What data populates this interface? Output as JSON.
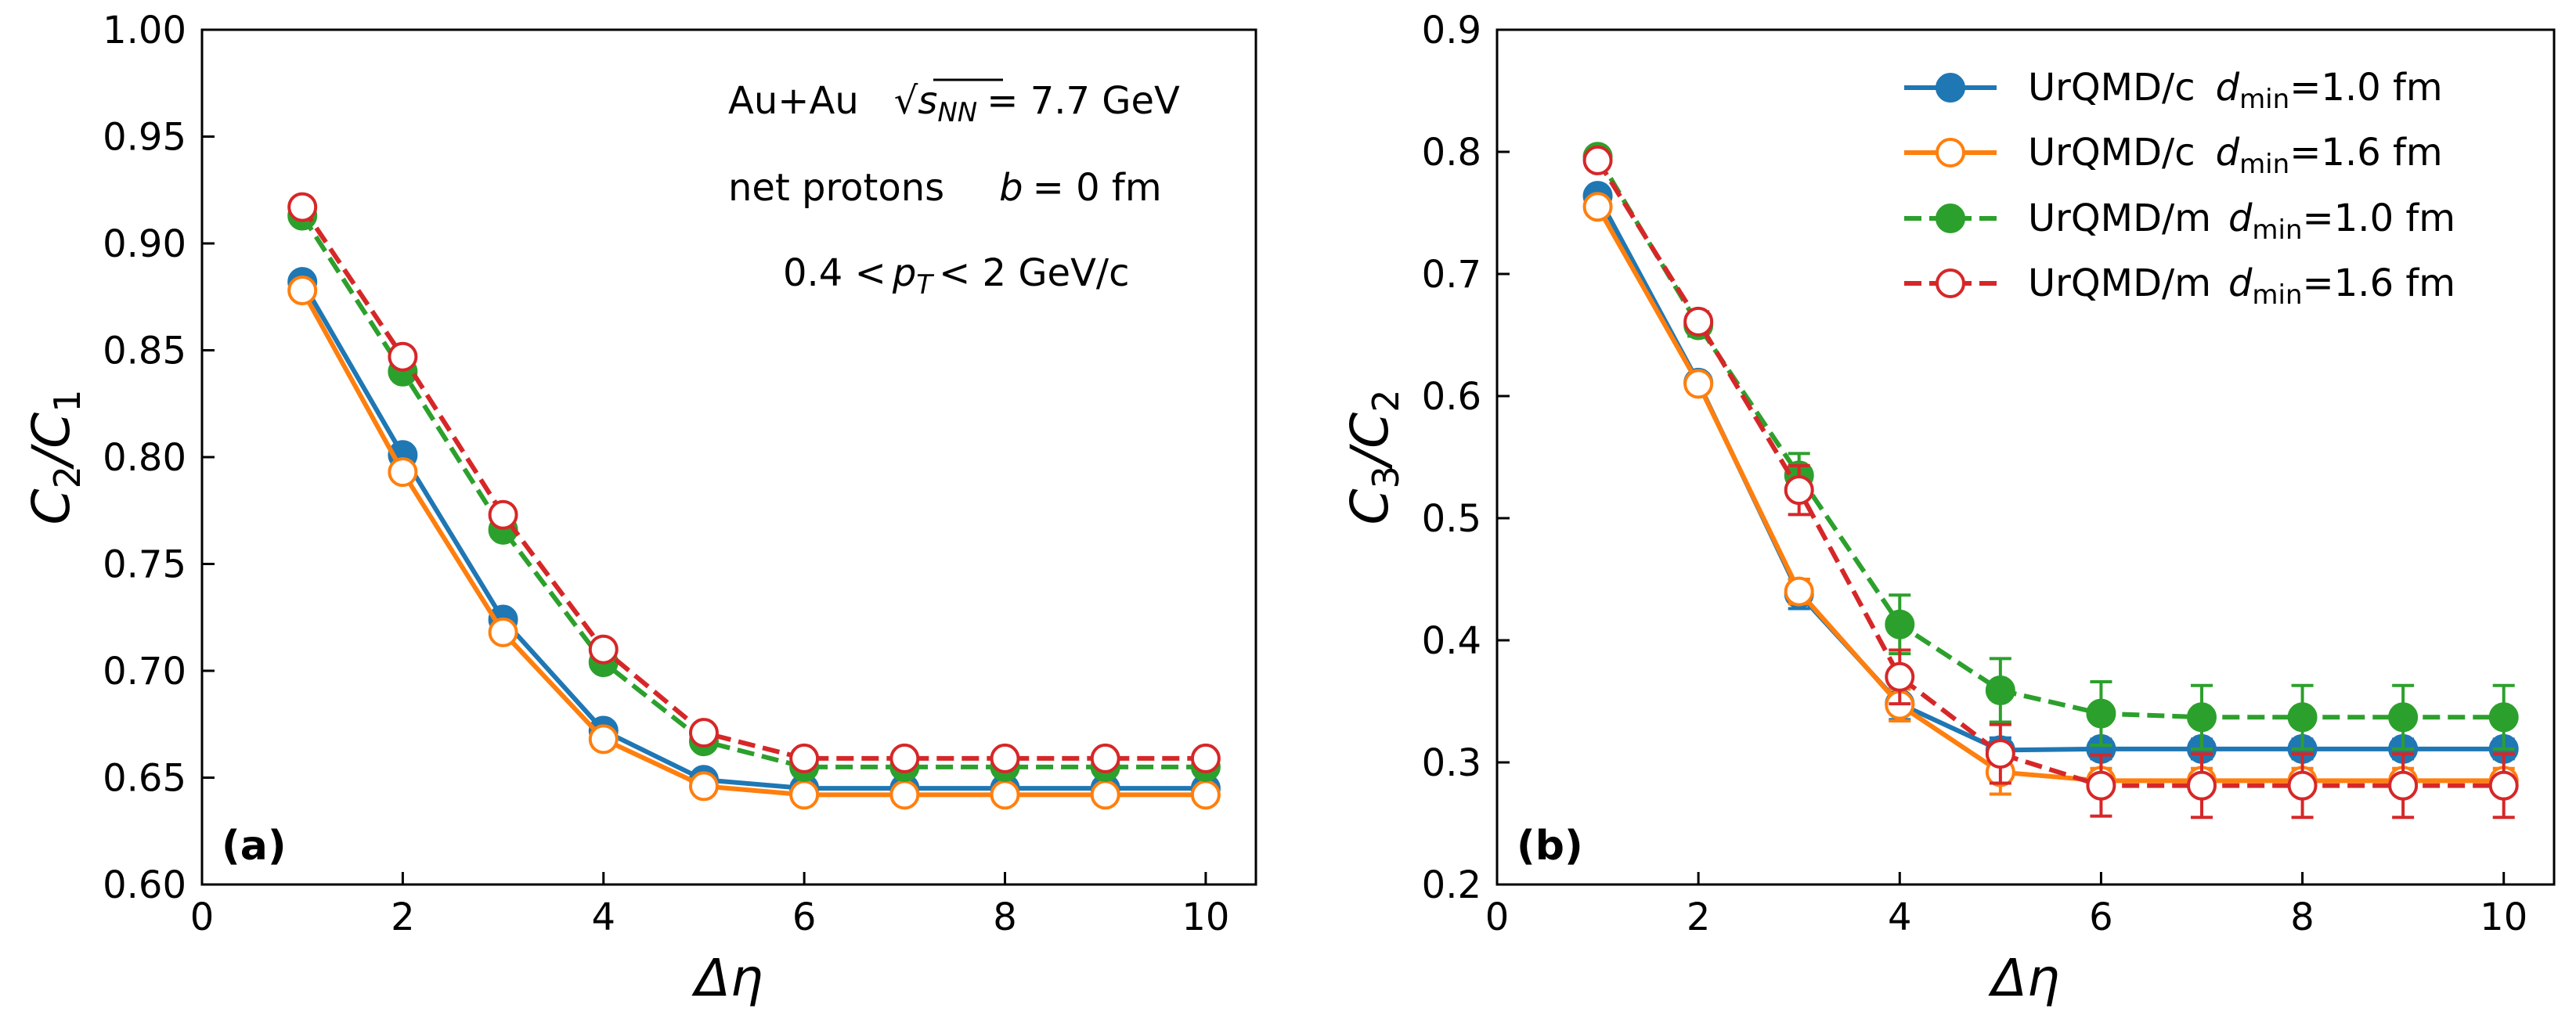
{
  "chart_data": [
    {
      "type": "line",
      "panel_label": "(a)",
      "xlabel": "Δη",
      "ylabel": {
        "base": "C",
        "sub1": "2",
        "sep": "/C",
        "sub2": "1"
      },
      "xlim": [
        0,
        10.5
      ],
      "ylim": [
        0.6,
        1.0
      ],
      "xticks": [
        0,
        2,
        4,
        6,
        8,
        10
      ],
      "xtick_labels": [
        "0",
        "2",
        "4",
        "6",
        "8",
        "10"
      ],
      "yticks": [
        0.6,
        0.65,
        0.7,
        0.75,
        0.8,
        0.85,
        0.9,
        0.95,
        1.0
      ],
      "ytick_labels": [
        "0.60",
        "0.65",
        "0.70",
        "0.75",
        "0.80",
        "0.85",
        "0.90",
        "0.95",
        "1.00"
      ],
      "annotations": {
        "line1_system": "Au+Au",
        "line1_sqrt_var": "s",
        "line1_sqrt_sub": "NN",
        "line1_energy": "= 7.7 GeV",
        "line2_particles": "net protons",
        "line2_b": "b",
        "line2_b_value": "= 0 fm",
        "line3_low": "0.4 <",
        "line3_var": "p",
        "line3_sub": "T",
        "line3_high": "< 2  GeV/c"
      },
      "x": [
        1,
        2,
        3,
        4,
        5,
        6,
        7,
        8,
        9,
        10
      ],
      "series": [
        {
          "name": "UrQMD/c d_min=1.0 fm",
          "color": "#1f77b4",
          "dash": "solid",
          "marker": "filled",
          "values": [
            0.882,
            0.801,
            0.724,
            0.672,
            0.649,
            0.645,
            0.645,
            0.645,
            0.645,
            0.645
          ]
        },
        {
          "name": "UrQMD/c d_min=1.6 fm",
          "color": "#ff7f0e",
          "dash": "solid",
          "marker": "open",
          "values": [
            0.878,
            0.793,
            0.718,
            0.668,
            0.646,
            0.642,
            0.642,
            0.642,
            0.642,
            0.642
          ]
        },
        {
          "name": "UrQMD/m d_min=1.0 fm",
          "color": "#2ca02c",
          "dash": "dashed",
          "marker": "filled",
          "values": [
            0.913,
            0.84,
            0.766,
            0.704,
            0.667,
            0.655,
            0.655,
            0.655,
            0.655,
            0.655
          ]
        },
        {
          "name": "UrQMD/m d_min=1.6 fm",
          "color": "#d62728",
          "dash": "dashed",
          "marker": "open",
          "values": [
            0.917,
            0.847,
            0.773,
            0.71,
            0.671,
            0.659,
            0.659,
            0.659,
            0.659,
            0.659
          ]
        }
      ]
    },
    {
      "type": "line",
      "panel_label": "(b)",
      "xlabel": "Δη",
      "ylabel": {
        "base": "C",
        "sub1": "3",
        "sep": "/C",
        "sub2": "2"
      },
      "xlim": [
        0,
        10.5
      ],
      "ylim": [
        0.2,
        0.9
      ],
      "xticks": [
        0,
        2,
        4,
        6,
        8,
        10
      ],
      "xtick_labels": [
        "0",
        "2",
        "4",
        "6",
        "8",
        "10"
      ],
      "yticks": [
        0.2,
        0.3,
        0.4,
        0.5,
        0.6,
        0.7,
        0.8,
        0.9
      ],
      "ytick_labels": [
        "0.2",
        "0.3",
        "0.4",
        "0.5",
        "0.6",
        "0.7",
        "0.8",
        "0.9"
      ],
      "legend": {
        "position": "top-right",
        "entries": [
          {
            "prefix": "UrQMD/c",
            "var": "d",
            "sub": "min",
            "value": "=1.0 fm"
          },
          {
            "prefix": "UrQMD/c",
            "var": "d",
            "sub": "min",
            "value": "=1.6 fm"
          },
          {
            "prefix": "UrQMD/m",
            "var": "d",
            "sub": "min",
            "value": "=1.0 fm"
          },
          {
            "prefix": "UrQMD/m",
            "var": "d",
            "sub": "min",
            "value": "=1.6 fm"
          }
        ]
      },
      "x": [
        1,
        2,
        3,
        4,
        5,
        6,
        7,
        8,
        9,
        10
      ],
      "series": [
        {
          "name": "UrQMD/c d_min=1.0 fm",
          "color": "#1f77b4",
          "dash": "solid",
          "marker": "filled",
          "values": [
            0.764,
            0.611,
            0.438,
            0.348,
            0.31,
            0.311,
            0.311,
            0.311,
            0.311,
            0.311
          ],
          "errors": [
            0.006,
            0.006,
            0.012,
            0.013,
            0.01,
            0.008,
            0.008,
            0.008,
            0.008,
            0.008
          ]
        },
        {
          "name": "UrQMD/c d_min=1.6 fm",
          "color": "#ff7f0e",
          "dash": "solid",
          "marker": "open",
          "values": [
            0.755,
            0.61,
            0.44,
            0.347,
            0.292,
            0.285,
            0.285,
            0.285,
            0.285,
            0.285
          ],
          "errors": [
            0.006,
            0.006,
            0.01,
            0.013,
            0.018,
            0.01,
            0.01,
            0.01,
            0.01,
            0.01
          ]
        },
        {
          "name": "UrQMD/m d_min=1.0 fm",
          "color": "#2ca02c",
          "dash": "dashed",
          "marker": "filled",
          "values": [
            0.796,
            0.658,
            0.535,
            0.413,
            0.359,
            0.34,
            0.337,
            0.337,
            0.337,
            0.337
          ],
          "errors": [
            0.007,
            0.009,
            0.018,
            0.024,
            0.026,
            0.026,
            0.026,
            0.026,
            0.026,
            0.026
          ]
        },
        {
          "name": "UrQMD/m d_min=1.6 fm",
          "color": "#d62728",
          "dash": "dashed",
          "marker": "open",
          "values": [
            0.793,
            0.661,
            0.523,
            0.37,
            0.307,
            0.281,
            0.281,
            0.281,
            0.281,
            0.281
          ],
          "errors": [
            0.007,
            0.008,
            0.02,
            0.022,
            0.024,
            0.025,
            0.026,
            0.026,
            0.026,
            0.026
          ]
        }
      ]
    }
  ]
}
